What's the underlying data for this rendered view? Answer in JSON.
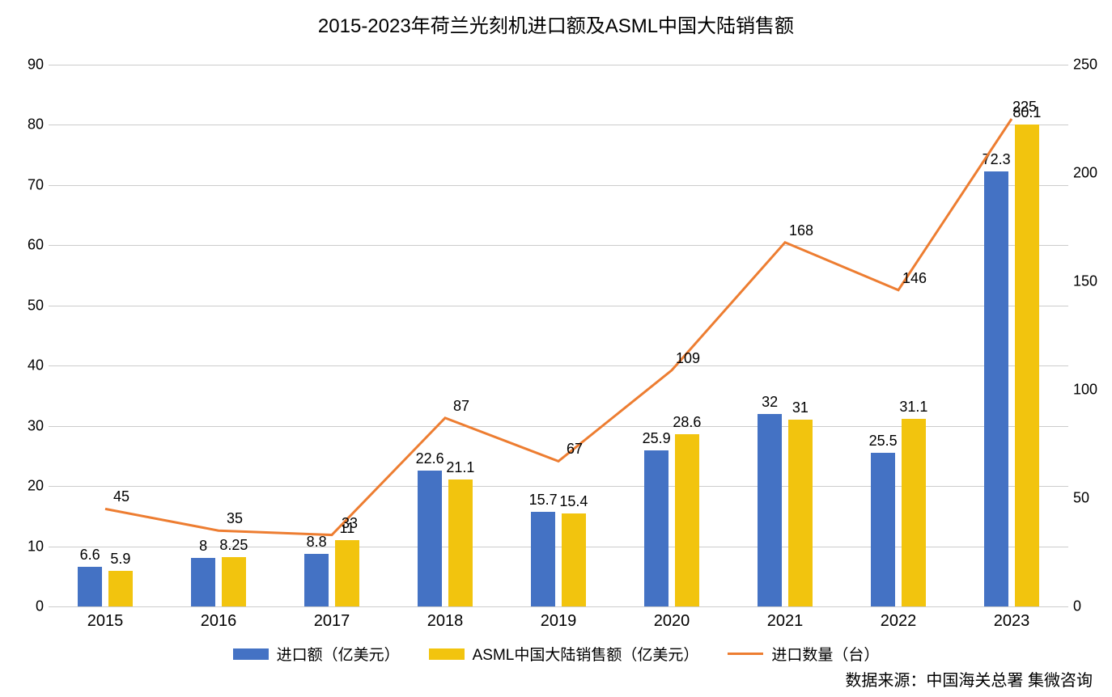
{
  "chart": {
    "type": "bar+line",
    "title": "2015-2023年荷兰光刻机进口额及ASML中国大陆销售额",
    "title_fontsize": 24,
    "categories": [
      "2015",
      "2016",
      "2017",
      "2018",
      "2019",
      "2020",
      "2021",
      "2022",
      "2023"
    ],
    "series": {
      "imports_value": {
        "label": "进口额（亿美元）",
        "type": "bar",
        "color": "#4472c4",
        "values": [
          6.6,
          8,
          8.8,
          22.6,
          15.7,
          25.9,
          32,
          25.5,
          72.3
        ],
        "axis": "left"
      },
      "asml_sales": {
        "label": "ASML中国大陆销售额（亿美元）",
        "type": "bar",
        "color": "#f2c40e",
        "values": [
          5.9,
          8.2,
          11,
          21.1,
          15.4,
          28.6,
          31,
          31.1,
          80.1
        ],
        "axis": "left",
        "display_labels": [
          "5.9",
          "8.25",
          "11",
          "21.1",
          "15.4",
          "28.6",
          "31",
          "31.1",
          "80.1"
        ]
      },
      "imports_qty": {
        "label": "进口数量（台）",
        "type": "line",
        "color": "#ed7d31",
        "values": [
          45,
          35,
          33,
          87,
          67,
          109,
          168,
          146,
          225
        ],
        "axis": "right",
        "line_width": 3
      }
    },
    "left_axis": {
      "min": 0,
      "max": 90,
      "step": 10,
      "fontsize": 18
    },
    "right_axis": {
      "min": 0,
      "max": 250,
      "step": 50,
      "fontsize": 18
    },
    "x_axis": {
      "fontsize": 20
    },
    "grid_color": "#cccccc",
    "background_color": "#ffffff",
    "bar_width_ratio": 0.22,
    "bar_gap_ratio": 0.05,
    "label_fontsize": 18,
    "legend": {
      "position": "bottom",
      "fontsize": 19,
      "items": [
        {
          "key": "imports_value",
          "text": "进口额（亿美元）"
        },
        {
          "key": "asml_sales",
          "text": "ASML中国大陆销售额（亿美元）"
        },
        {
          "key": "imports_qty",
          "text": "进口数量（台）"
        }
      ]
    }
  },
  "source_label": "数据来源：中国海关总署 集微咨询"
}
